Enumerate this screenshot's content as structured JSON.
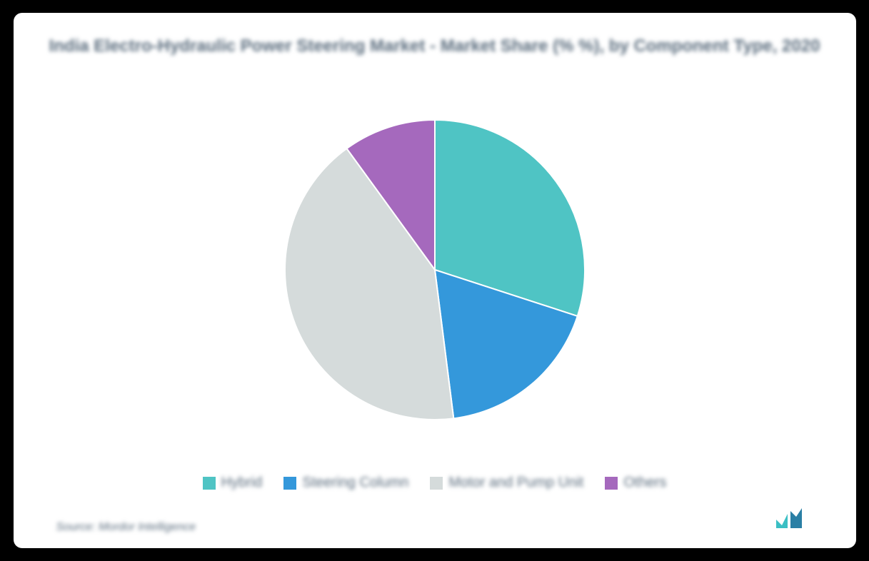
{
  "chart": {
    "type": "pie",
    "title": "India Electro-Hydraulic Power Steering Market - Market Share (% %), by Component Type, 2020",
    "title_fontsize": 24,
    "title_color": "#5a6c7d",
    "background_color": "#ffffff",
    "page_background": "#000000",
    "border_radius": 12,
    "pie_diameter": 440,
    "slices": [
      {
        "label": "Hybrid",
        "value": 30,
        "color": "#4fc4c4"
      },
      {
        "label": "Steering Column",
        "value": 18,
        "color": "#3498db"
      },
      {
        "label": "Motor and Pump Unit",
        "value": 42,
        "color": "#d5dbdb"
      },
      {
        "label": "Others",
        "value": 10,
        "color": "#a569bd"
      }
    ],
    "start_angle_deg": 0,
    "slice_stroke": "#ffffff",
    "slice_stroke_width": 2,
    "legend": {
      "position": "bottom",
      "swatch_size": 18,
      "label_fontsize": 20,
      "label_color": "#5a6c7d",
      "gap": 30
    },
    "source_text": "Source: Mordor Intelligence",
    "source_fontsize": 16,
    "source_color": "#5a6c7d",
    "logo_colors": {
      "bar1": "#3bbfc4",
      "bar2": "#2a7fa5"
    },
    "blur_applied": true
  }
}
